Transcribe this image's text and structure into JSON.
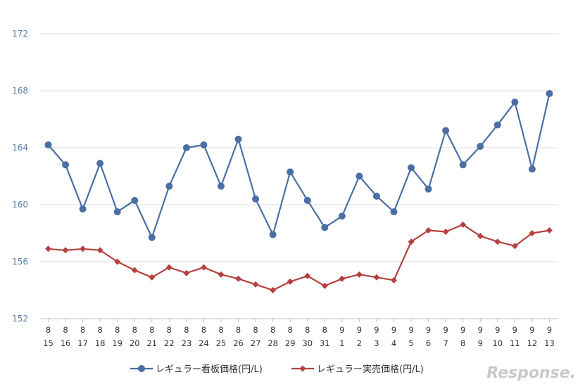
{
  "chart_data": {
    "type": "line",
    "title": "",
    "xlabel": "",
    "ylabel": "",
    "ylim": [
      152,
      172
    ],
    "yticks": [
      "152",
      "156",
      "160",
      "164",
      "168",
      "172"
    ],
    "grid": true,
    "legend_position": "bottom",
    "x": [
      {
        "m": "8",
        "d": "15"
      },
      {
        "m": "8",
        "d": "16"
      },
      {
        "m": "8",
        "d": "17"
      },
      {
        "m": "8",
        "d": "18"
      },
      {
        "m": "8",
        "d": "19"
      },
      {
        "m": "8",
        "d": "20"
      },
      {
        "m": "8",
        "d": "21"
      },
      {
        "m": "8",
        "d": "22"
      },
      {
        "m": "8",
        "d": "23"
      },
      {
        "m": "8",
        "d": "24"
      },
      {
        "m": "8",
        "d": "25"
      },
      {
        "m": "8",
        "d": "26"
      },
      {
        "m": "8",
        "d": "27"
      },
      {
        "m": "8",
        "d": "28"
      },
      {
        "m": "8",
        "d": "29"
      },
      {
        "m": "8",
        "d": "30"
      },
      {
        "m": "8",
        "d": "31"
      },
      {
        "m": "9",
        "d": "1"
      },
      {
        "m": "9",
        "d": "2"
      },
      {
        "m": "9",
        "d": "3"
      },
      {
        "m": "9",
        "d": "4"
      },
      {
        "m": "9",
        "d": "5"
      },
      {
        "m": "9",
        "d": "6"
      },
      {
        "m": "9",
        "d": "7"
      },
      {
        "m": "9",
        "d": "8"
      },
      {
        "m": "9",
        "d": "9"
      },
      {
        "m": "9",
        "d": "10"
      },
      {
        "m": "9",
        "d": "11"
      },
      {
        "m": "9",
        "d": "12"
      },
      {
        "m": "9",
        "d": "13"
      }
    ],
    "series": [
      {
        "name": "レギュラー看板価格(円/L)",
        "color": "#4a6fa5",
        "marker": "circle",
        "values": [
          164.2,
          162.8,
          159.7,
          162.9,
          159.5,
          160.3,
          157.7,
          161.3,
          164.0,
          164.2,
          161.3,
          164.6,
          160.4,
          157.9,
          162.3,
          160.3,
          158.4,
          159.2,
          162.0,
          160.6,
          159.5,
          162.6,
          161.1,
          165.2,
          162.8,
          164.1,
          165.6,
          167.2,
          162.5,
          167.8
        ]
      },
      {
        "name": "レギュラー実売価格(円/L)",
        "color": "#b5413f",
        "marker": "diamond",
        "values": [
          156.9,
          156.8,
          156.9,
          156.8,
          156.0,
          155.4,
          154.9,
          155.6,
          155.2,
          155.6,
          155.1,
          154.8,
          154.4,
          154.0,
          154.6,
          155.0,
          154.3,
          154.8,
          155.1,
          154.9,
          154.7,
          157.4,
          158.2,
          158.1,
          158.6,
          157.8,
          157.4,
          157.1,
          158.0,
          158.2
        ]
      }
    ]
  },
  "watermark": "Response."
}
